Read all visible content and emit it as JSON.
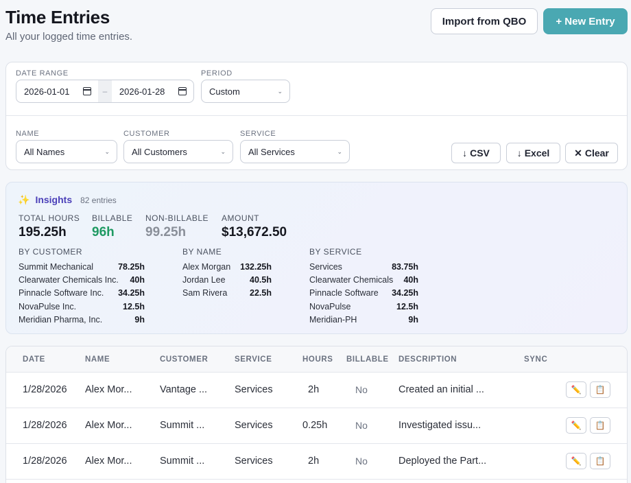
{
  "header": {
    "title": "Time Entries",
    "subtitle": "All your logged time entries.",
    "import_label": "Import from QBO",
    "new_entry_label": "+ New Entry"
  },
  "filters": {
    "date_range_label": "DATE RANGE",
    "date_from": "2026-01-01",
    "date_sep": "–",
    "date_to": "2026-01-28",
    "period_label": "PERIOD",
    "period_value": "Custom",
    "name_label": "NAME",
    "name_value": "All Names",
    "customer_label": "CUSTOMER",
    "customer_value": "All Customers",
    "service_label": "SERVICE",
    "service_value": "All Services",
    "csv_label": "CSV",
    "excel_label": "Excel",
    "clear_label": "Clear"
  },
  "insights": {
    "title": "Insights",
    "count": "82 entries",
    "total_hours_label": "TOTAL HOURS",
    "total_hours": "195.25h",
    "billable_label": "BILLABLE",
    "billable": "96h",
    "non_billable_label": "NON-BILLABLE",
    "non_billable": "99.25h",
    "amount_label": "AMOUNT",
    "amount": "$13,672.50",
    "by_customer_label": "BY CUSTOMER",
    "by_customer": [
      {
        "name": "Summit Mechanical",
        "hours": "78.25h"
      },
      {
        "name": "Clearwater Chemicals Inc.",
        "hours": "40h"
      },
      {
        "name": "Pinnacle Software Inc.",
        "hours": "34.25h"
      },
      {
        "name": "NovaPulse Inc.",
        "hours": "12.5h"
      },
      {
        "name": "Meridian Pharma, Inc.",
        "hours": "9h"
      }
    ],
    "by_name_label": "BY NAME",
    "by_name": [
      {
        "name": "Alex Morgan",
        "hours": "132.25h"
      },
      {
        "name": "Jordan Lee",
        "hours": "40.5h"
      },
      {
        "name": "Sam Rivera",
        "hours": "22.5h"
      }
    ],
    "by_service_label": "BY SERVICE",
    "by_service": [
      {
        "name": "Services",
        "hours": "83.75h"
      },
      {
        "name": "Clearwater Chemicals",
        "hours": "40h"
      },
      {
        "name": "Pinnacle Software",
        "hours": "34.25h"
      },
      {
        "name": "NovaPulse",
        "hours": "12.5h"
      },
      {
        "name": "Meridian-PH",
        "hours": "9h"
      }
    ],
    "colors": {
      "billable": "#1f9a63",
      "non_billable": "#8a8f99",
      "title": "#4a3fb8"
    }
  },
  "table": {
    "columns": [
      "DATE",
      "NAME",
      "CUSTOMER",
      "SERVICE",
      "HOURS",
      "BILLABLE",
      "DESCRIPTION",
      "SYNC"
    ],
    "rows": [
      {
        "date": "1/28/2026",
        "name": "Alex Mor...",
        "customer": "Vantage ...",
        "service": "Services",
        "hours": "2h",
        "billable": "No",
        "description": "Created an initial ..."
      },
      {
        "date": "1/28/2026",
        "name": "Alex Mor...",
        "customer": "Summit ...",
        "service": "Services",
        "hours": "0.25h",
        "billable": "No",
        "description": "Investigated issu..."
      },
      {
        "date": "1/28/2026",
        "name": "Alex Mor...",
        "customer": "Summit ...",
        "service": "Services",
        "hours": "2h",
        "billable": "No",
        "description": "Deployed the Part..."
      }
    ],
    "edit_icon": "✏️",
    "copy_icon": "📋"
  }
}
